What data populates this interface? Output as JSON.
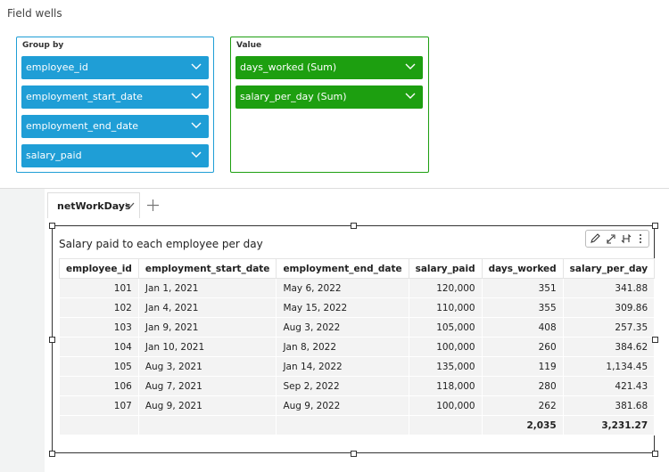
{
  "header": {
    "title": "Field wells"
  },
  "group_by": {
    "label": "Group by",
    "fields": [
      "employee_id",
      "employment_start_date",
      "employment_end_date",
      "salary_paid"
    ]
  },
  "value": {
    "label": "Value",
    "fields": [
      "days_worked (Sum)",
      "salary_per_day (Sum)"
    ]
  },
  "tab": {
    "label": "netWorkDays"
  },
  "visual": {
    "title": "Salary paid to each employee per day",
    "table": {
      "columns": [
        "employee_id",
        "employment_start_date",
        "employment_end_date",
        "salary_paid",
        "days_worked",
        "salary_per_day"
      ],
      "rows": [
        [
          "101",
          "Jan 1, 2021",
          "May 6, 2022",
          "120,000",
          "351",
          "341.88"
        ],
        [
          "102",
          "Jan 4, 2021",
          "May 15, 2022",
          "110,000",
          "355",
          "309.86"
        ],
        [
          "103",
          "Jan 9, 2021",
          "Aug 3, 2022",
          "105,000",
          "408",
          "257.35"
        ],
        [
          "104",
          "Jan 10, 2021",
          "Jan 8, 2022",
          "100,000",
          "260",
          "384.62"
        ],
        [
          "105",
          "Aug 3, 2021",
          "Jan 14, 2022",
          "135,000",
          "119",
          "1,134.45"
        ],
        [
          "106",
          "Aug 7, 2021",
          "Sep 2, 2022",
          "118,000",
          "280",
          "421.43"
        ],
        [
          "107",
          "Aug 9, 2021",
          "Aug 9, 2022",
          "100,000",
          "262",
          "381.68"
        ]
      ],
      "totals": [
        "2,035",
        "3,231.27"
      ]
    }
  }
}
